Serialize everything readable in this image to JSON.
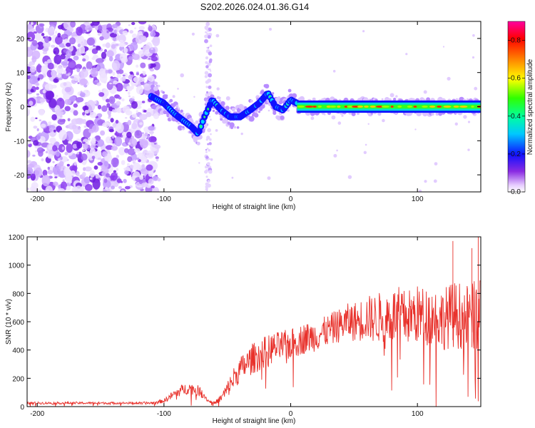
{
  "title": "S202.2026.024.01.36.G14",
  "colors": {
    "snr_line": "#e8312b",
    "frame": "#000000",
    "background": "#ffffff"
  },
  "chart_data": [
    {
      "type": "heatmap",
      "id": "spectrogram",
      "xlabel": "Height of straight line (km)",
      "ylabel": "Frequency (Hz)",
      "xlim": [
        -208,
        150
      ],
      "ylim": [
        -25,
        25
      ],
      "xticks": [
        -200,
        -100,
        0,
        100
      ],
      "xtick_labels": [
        "-200",
        "-100",
        "0",
        "100"
      ],
      "yticks": [
        -20,
        -10,
        0,
        10,
        20
      ],
      "ytick_labels": [
        "-20",
        "-10",
        "0",
        "10",
        "20"
      ],
      "colorbar": {
        "label": "Normalized spectral amplitude",
        "range": [
          0.0,
          0.9
        ],
        "ticks": [
          0.0,
          0.2,
          0.4,
          0.6,
          0.8
        ],
        "tick_labels": [
          "0.0",
          "0.2",
          "0.4",
          "0.6",
          "0.8"
        ],
        "colormap": "rainbow (white-violet-blue-cyan-green-yellow-red-magenta)"
      },
      "features": {
        "noise_region_x": [
          -208,
          -105
        ],
        "vertical_streak_x": -65,
        "ridge": [
          {
            "x": -110,
            "y": 3
          },
          {
            "x": -100,
            "y": 1
          },
          {
            "x": -92,
            "y": -2
          },
          {
            "x": -85,
            "y": -4
          },
          {
            "x": -78,
            "y": -6
          },
          {
            "x": -73,
            "y": -8
          },
          {
            "x": -68,
            "y": -3
          },
          {
            "x": -62,
            "y": 2
          },
          {
            "x": -55,
            "y": -1
          },
          {
            "x": -48,
            "y": -3
          },
          {
            "x": -40,
            "y": -3
          },
          {
            "x": -32,
            "y": -1
          },
          {
            "x": -25,
            "y": 1
          },
          {
            "x": -18,
            "y": 4
          },
          {
            "x": -12,
            "y": 0
          },
          {
            "x": -6,
            "y": -1
          },
          {
            "x": 0,
            "y": 2
          },
          {
            "x": 10,
            "y": 0
          },
          {
            "x": 40,
            "y": 0
          },
          {
            "x": 80,
            "y": 0
          },
          {
            "x": 120,
            "y": 0
          },
          {
            "x": 150,
            "y": 0
          }
        ]
      }
    },
    {
      "type": "line",
      "id": "snr",
      "xlabel": "Height of straight line (km)",
      "ylabel": "SNR (10 * v/v)",
      "xlim": [
        -208,
        150
      ],
      "ylim": [
        0,
        1200
      ],
      "xticks": [
        -200,
        -100,
        0,
        100
      ],
      "xtick_labels": [
        "-200",
        "-100",
        "0",
        "100"
      ],
      "yticks": [
        0,
        200,
        400,
        600,
        800,
        1000,
        1200
      ],
      "ytick_labels": [
        "0",
        "200",
        "400",
        "600",
        "800",
        "1000",
        "1200"
      ],
      "series": [
        {
          "name": "SNR",
          "x": [
            -208,
            -200,
            -190,
            -180,
            -170,
            -160,
            -150,
            -140,
            -130,
            -120,
            -110,
            -100,
            -95,
            -90,
            -85,
            -80,
            -75,
            -70,
            -65,
            -60,
            -55,
            -50,
            -45,
            -40,
            -35,
            -30,
            -25,
            -20,
            -15,
            -10,
            -5,
            0,
            5,
            10,
            15,
            20,
            25,
            30,
            35,
            40,
            45,
            50,
            55,
            60,
            65,
            70,
            75,
            80,
            85,
            90,
            95,
            100,
            105,
            110,
            115,
            120,
            125,
            130,
            135,
            140,
            145,
            150
          ],
          "values": [
            25,
            25,
            25,
            25,
            25,
            25,
            25,
            25,
            25,
            25,
            25,
            40,
            70,
            100,
            120,
            130,
            120,
            100,
            40,
            25,
            60,
            120,
            200,
            260,
            300,
            340,
            360,
            390,
            410,
            420,
            430,
            440,
            460,
            480,
            490,
            500,
            520,
            540,
            560,
            580,
            600,
            600,
            610,
            630,
            620,
            630,
            640,
            640,
            650,
            630,
            640,
            650,
            640,
            640,
            630,
            620,
            640,
            650,
            640,
            630,
            640,
            640
          ],
          "amplitude": [
            8,
            8,
            8,
            8,
            8,
            8,
            8,
            8,
            8,
            8,
            10,
            15,
            25,
            35,
            40,
            40,
            40,
            35,
            10,
            10,
            30,
            60,
            80,
            90,
            100,
            110,
            110,
            110,
            110,
            110,
            110,
            110,
            110,
            110,
            110,
            110,
            110,
            110,
            120,
            120,
            130,
            140,
            150,
            160,
            170,
            180,
            190,
            200,
            200,
            200,
            200,
            210,
            210,
            210,
            220,
            220,
            230,
            240,
            240,
            240,
            250,
            250
          ]
        }
      ],
      "peak_annotations": [
        {
          "x": 128,
          "y": 1170
        },
        {
          "x": 143,
          "y": 1120
        },
        {
          "x": 148,
          "y": 1200
        }
      ]
    }
  ]
}
